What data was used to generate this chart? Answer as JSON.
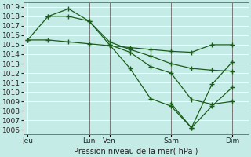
{
  "title": "Pression niveau de la mer( hPa )",
  "background_color": "#c5ebe6",
  "grid_color": "#ffffff",
  "line_color": "#1a5c1a",
  "ylim": [
    1005.5,
    1019.5
  ],
  "yticks": [
    1006,
    1007,
    1008,
    1009,
    1010,
    1011,
    1012,
    1013,
    1014,
    1015,
    1016,
    1017,
    1018,
    1019
  ],
  "xtick_labels": [
    "Jeu",
    "Lun",
    "Ven",
    "Sam",
    "Dim"
  ],
  "xtick_positions": [
    0.0,
    3.0,
    4.0,
    7.0,
    10.0
  ],
  "xlim": [
    -0.2,
    10.8
  ],
  "vlines_x": [
    3.0,
    4.0,
    7.0,
    10.0
  ],
  "line1_x": [
    0.0,
    1.0,
    2.0,
    3.0,
    4.0,
    5.0,
    6.0,
    7.0,
    8.0,
    9.0,
    10.0
  ],
  "line1_y": [
    1015.5,
    1015.5,
    1015.3,
    1015.1,
    1014.9,
    1014.7,
    1014.5,
    1014.3,
    1014.2,
    1015.0,
    1015.0
  ],
  "line2_x": [
    0.0,
    1.0,
    2.0,
    3.0,
    4.0,
    5.0,
    6.0,
    7.0,
    8.0,
    9.0,
    10.0
  ],
  "line2_y": [
    1015.5,
    1018.0,
    1018.0,
    1017.5,
    1015.3,
    1014.5,
    1013.8,
    1013.0,
    1012.5,
    1012.3,
    1012.2
  ],
  "line3_x": [
    1.0,
    2.0,
    3.0,
    4.0,
    5.0,
    6.0,
    7.0,
    8.0,
    9.0,
    10.0
  ],
  "line3_y": [
    1018.0,
    1018.8,
    1017.5,
    1015.0,
    1014.2,
    1012.7,
    1012.0,
    1009.2,
    1008.7,
    1009.0
  ],
  "line4_x": [
    4.0,
    5.0,
    6.0,
    7.0,
    8.0,
    9.0,
    10.0
  ],
  "line4_y": [
    1015.0,
    1012.5,
    1009.3,
    1008.5,
    1006.2,
    1008.5,
    1010.5
  ],
  "line5_x": [
    7.0,
    8.0,
    9.0,
    10.0
  ],
  "line5_y": [
    1008.8,
    1006.2,
    1010.8,
    1013.2
  ],
  "ylabel_fontsize": 7,
  "tick_fontsize": 6.5,
  "marker": "+",
  "markersize": 4,
  "linewidth": 0.9
}
